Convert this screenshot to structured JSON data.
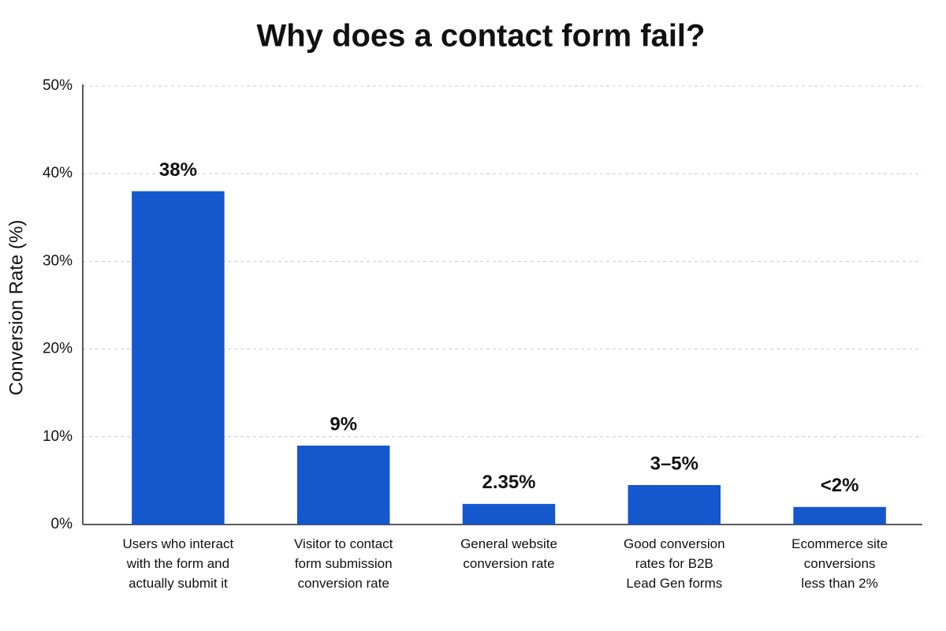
{
  "chart_data": {
    "type": "bar",
    "title": "Why does a contact form fail?",
    "y_label": "Conversion Rate (%)",
    "categories": [
      "Users who interact\nwith the form and\nactually submit it",
      "Visitor to contact\nform submission\nconversion rate",
      "General website\nconversion rate",
      "Good conversion\nrates for  B2B\nLead Gen forms",
      "Ecommerce site\nconversions\nless than 2%"
    ],
    "values": [
      38,
      9,
      2.35,
      4.5,
      2
    ],
    "value_labels": [
      "38%",
      "9%",
      "2.35%",
      "3–5%",
      "<2%"
    ],
    "color": "#1557cc",
    "ylim": [
      0,
      50
    ],
    "yticks": [
      {
        "value": 0,
        "label": "0%"
      },
      {
        "value": 10,
        "label": "10%"
      },
      {
        "value": 20,
        "label": "20%"
      },
      {
        "value": 30,
        "label": "30%"
      },
      {
        "value": 40,
        "label": "40%"
      },
      {
        "value": 50,
        "label": "50%"
      }
    ],
    "grid": true
  }
}
